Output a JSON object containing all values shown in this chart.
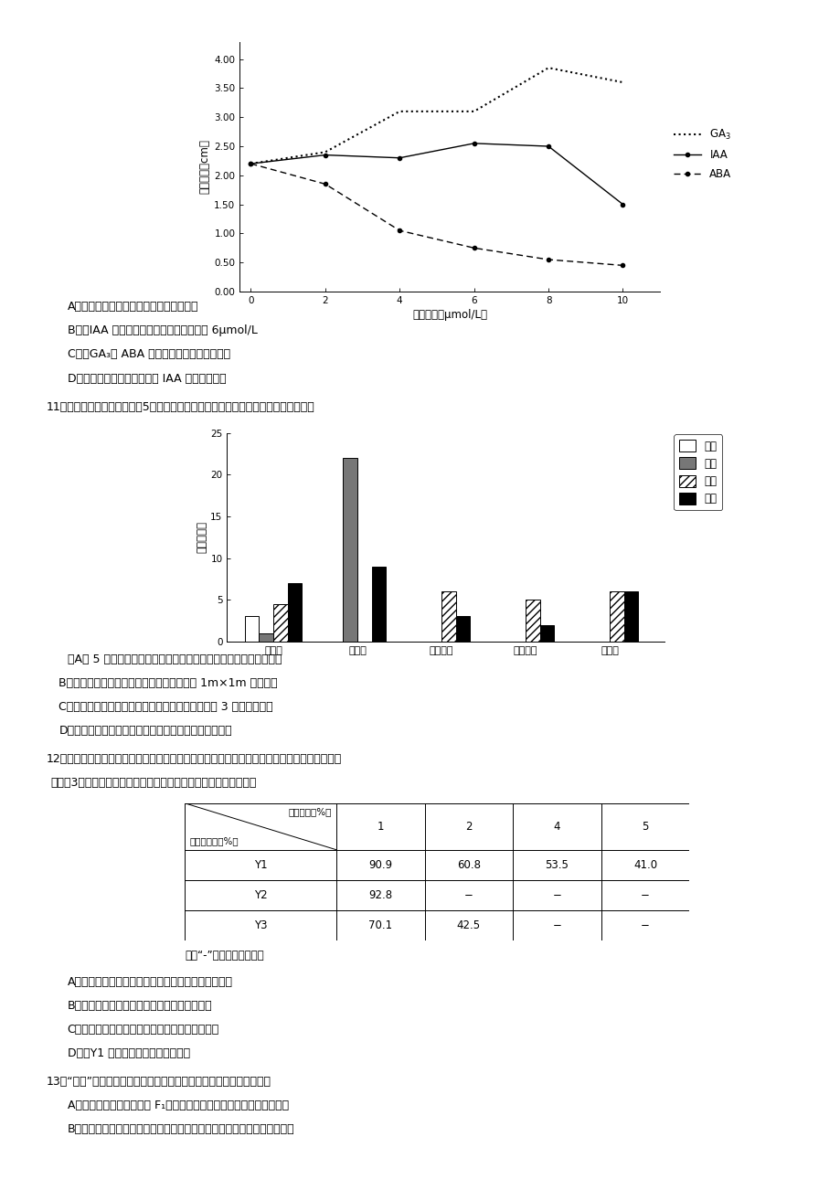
{
  "page_bg": "#ffffff",
  "line_chart": {
    "x": [
      0,
      2,
      4,
      6,
      8,
      10
    ],
    "GA3": [
      2.2,
      2.4,
      3.1,
      3.1,
      3.85,
      3.6
    ],
    "IAA": [
      2.2,
      2.35,
      2.3,
      2.55,
      2.5,
      1.5
    ],
    "ABA": [
      2.2,
      1.85,
      1.05,
      0.75,
      0.55,
      0.45
    ],
    "ylabel": "平均根长（cm）",
    "xlabel": "药物浓度（μmol/L）",
    "ylim": [
      0,
      4.0
    ],
    "yticks": [
      0,
      0.5,
      1.0,
      1.5,
      2.0,
      2.5,
      3.0,
      3.5,
      4.0
    ],
    "xticks": [
      0,
      2,
      4,
      6,
      8,
      10
    ]
  },
  "bar_chart": {
    "species": [
      "野核桃",
      "香果树",
      "小叶青冈",
      "薄叶浪榹",
      "青錢柳"
    ],
    "seedling": [
      3,
      0,
      0,
      0,
      0
    ],
    "small_tree": [
      1,
      22,
      0,
      0,
      0
    ],
    "mid_tree": [
      4.5,
      0,
      6,
      5,
      6
    ],
    "big_tree": [
      7,
      9,
      3,
      2,
      6
    ],
    "ylabel": "数目（株）",
    "ylim": [
      0,
      25
    ],
    "yticks": [
      0,
      5,
      10,
      15,
      20,
      25
    ],
    "legend_labels": [
      "幼苗",
      "小树",
      "壮树",
      "大树"
    ]
  },
  "table": {
    "col_headers": [
      "1",
      "2",
      "4",
      "5"
    ],
    "row_headers": [
      "Y1",
      "Y2",
      "Y3"
    ],
    "data": [
      [
        "90.9",
        "60.8",
        "53.5",
        "41.0"
      ],
      [
        "92.8",
        "−",
        "−",
        "−"
      ],
      [
        "70.1",
        "42.5",
        "−",
        "−"
      ]
    ],
    "header1": "柴油浓度（%）",
    "header2": "菌株降解率（%）"
  },
  "texts_after_linechart": [
    "A．　上述实验中，各组青棵的根均可生长",
    "B．　IAA 促进青棵根生长的最适浓度约为 6μmol/L",
    "C．　GA₃与 ABA 调节青棵根生长的效果相反",
    "D．　该实验结果并未体现出 IAA 作用的两重性"
  ],
  "q11_text": "11．调查某森林群落乔木层的5个优势种的年龄结构，结果如下图。下列叙述正确的是",
  "texts_after_bar": [
    "　A． 5 个优势种与其他乔木、灌木、草本植物共同构成了森林群落",
    "B．调查乔木年龄结构时应采用样方法，选取 1m×1m 的正方形",
    "C．香果树和野核桃的种群年龄结构为增长型，其余 3 种接近衰退型",
    "D．随着群落的演替，香果树种群的优势地位将更加明显"
  ],
  "q12_text1": "12．柴油是重要的燃料油之一，泄露或不当排放会造成环境污染。研究者从被柴油污染的土壤中",
  "q12_text2": "获取了3种柴油降解菌进行研究，结果见下表。下列叙述不正确的是",
  "table_note": "注：“-”表示菌株不能生长",
  "texts_after_table": [
    "A．　为获得降解菌，应用以柴油为唯一碳源的培养基",
    "B．　所用培养基和土壤样液均需进行严格灭菌",
    "C．　可采用稀释涂布平板法获得降解菌的单菌落",
    "D．　Y1 对高浓度柴油的耐受性更强"
  ],
  "q13_text": "13．“筛选”是生物技术与工程中常用的技术手段。下列叙述不正确的是",
  "texts_q13": [
    "A．　单倍体育种时，需对 F₁的花药进行筛选后才可继续进行组织培养",
    "B．　制备单克隆抗体时，需从分子水平筛选能产生所需抗体的杂交瘀细胞"
  ]
}
